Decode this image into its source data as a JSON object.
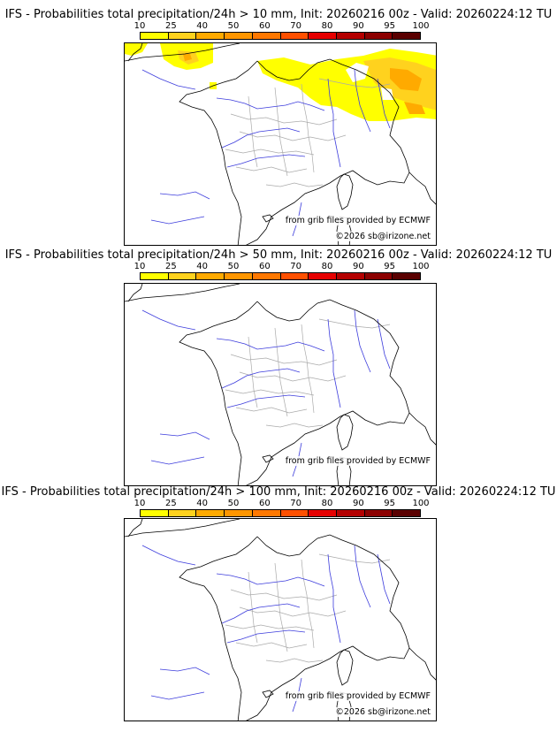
{
  "colorbar": {
    "ticks": [
      "10",
      "25",
      "40",
      "50",
      "60",
      "70",
      "80",
      "90",
      "95",
      "100"
    ],
    "colors": [
      "#ffff00",
      "#ffd21e",
      "#ffaa00",
      "#ff9600",
      "#ff7800",
      "#ff5000",
      "#e60000",
      "#b40000",
      "#8c0000",
      "#5a0000"
    ]
  },
  "panels": [
    {
      "title": "IFS - Probabilities total precipitation/24h > 10 mm, Init: 20260216 00z - Valid: 20260224:12 TU",
      "credit_source": "from grib files provided by ECMWF",
      "credit_copyright": "©2026 sb@irizone.net",
      "has_precip": true
    },
    {
      "title": "IFS - Probabilities total precipitation/24h > 50 mm, Init: 20260216 00z - Valid: 20260224:12 TU",
      "credit_source": "from grib files provided by ECMWF",
      "credit_copyright": "",
      "has_precip": false
    },
    {
      "title": "IFS - Probabilities total precipitation/24h > 100 mm, Init: 20260216 00z - Valid: 20260224:12 TU",
      "credit_source": "from grib files provided by ECMWF",
      "credit_copyright": "©2026 sb@irizone.net",
      "has_precip": false
    }
  ],
  "map_colors": {
    "coast": "#000000",
    "river": "#3c3cdc",
    "border": "#aaaaaa"
  }
}
